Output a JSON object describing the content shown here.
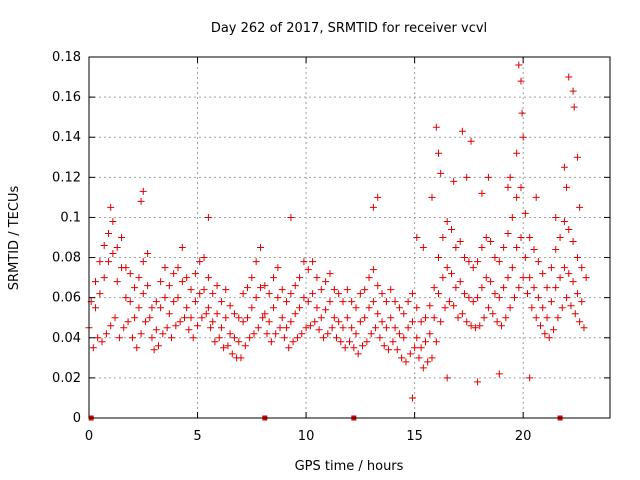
{
  "chart_data": {
    "type": "scatter",
    "title": "Day 262 of 2017, SRMTID for receiver vcvl",
    "xlabel": "GPS time / hours",
    "ylabel": "SRMTID / TECUs",
    "xlim": [
      0,
      24
    ],
    "ylim": [
      0,
      0.18
    ],
    "xticks": [
      0,
      5,
      10,
      15,
      20
    ],
    "xtick_labels": [
      "0",
      "5",
      "10",
      "15",
      "20"
    ],
    "yticks": [
      0,
      0.02,
      0.04,
      0.06,
      0.08,
      0.1,
      0.12,
      0.14,
      0.16,
      0.18
    ],
    "ytick_labels": [
      "0",
      "0.02",
      "0.04",
      "0.06",
      "0.08",
      "0.1",
      "0.12",
      "0.14",
      "0.16",
      "0.18"
    ],
    "grid": true,
    "marker": "+",
    "color": "#e00000",
    "baseline_markers_x": [
      0.1,
      8.1,
      12.2,
      21.7
    ],
    "series": [
      {
        "name": "SRMTID",
        "x": [
          0.0,
          0.3,
          0.5,
          0.7,
          0.9,
          1.1,
          1.3,
          1.5,
          1.7,
          1.9,
          2.1,
          2.3,
          2.5,
          2.7,
          2.9,
          3.1,
          3.3,
          3.5,
          3.7,
          3.9,
          4.1,
          4.3,
          4.5,
          4.7,
          4.9,
          5.1,
          5.3,
          5.5,
          5.7,
          5.9,
          6.1,
          6.3,
          6.5,
          6.7,
          6.9,
          7.1,
          7.3,
          7.5,
          7.7,
          7.9,
          8.1,
          8.3,
          8.5,
          8.7,
          8.9,
          9.1,
          9.3,
          9.5,
          9.7,
          9.9,
          10.1,
          10.3,
          10.5,
          10.7,
          10.9,
          11.1,
          11.3,
          11.5,
          11.7,
          11.9,
          12.1,
          12.3,
          12.5,
          12.7,
          12.9,
          13.1,
          13.3,
          13.5,
          13.7,
          13.9,
          14.1,
          14.3,
          14.5,
          14.7,
          14.9,
          15.1,
          15.3,
          15.5,
          15.7,
          15.9,
          16.1,
          16.3,
          16.5,
          16.7,
          16.9,
          17.1,
          17.3,
          17.5,
          17.7,
          17.9,
          18.1,
          18.3,
          18.5,
          18.7,
          18.9,
          19.1,
          19.3,
          19.5,
          19.7,
          19.9,
          20.1,
          20.3,
          20.5,
          20.7,
          20.9,
          21.1,
          21.3,
          21.5,
          21.7,
          21.9,
          22.1,
          22.3,
          22.5,
          22.7,
          22.9,
          0.2,
          0.4,
          0.6,
          0.8,
          1.0,
          1.2,
          1.4,
          1.6,
          1.8,
          2.0,
          2.2,
          2.4,
          2.6,
          2.8,
          3.0,
          3.2,
          3.4,
          3.6,
          3.8,
          4.0,
          4.2,
          4.4,
          4.6,
          4.8,
          5.0,
          5.2,
          5.4,
          5.6,
          5.8,
          6.0,
          6.2,
          6.4,
          6.6,
          6.8,
          7.0,
          7.2,
          7.4,
          7.6,
          7.8,
          8.0,
          8.2,
          8.4,
          8.6,
          8.8,
          9.0,
          9.2,
          9.4,
          9.6,
          9.8,
          10.0,
          10.2,
          10.4,
          10.6,
          10.8,
          11.0,
          11.2,
          11.4,
          11.6,
          11.8,
          12.0,
          12.2,
          12.4,
          12.6,
          12.8,
          13.0,
          13.2,
          13.4,
          13.6,
          13.8,
          14.0,
          14.2,
          14.4,
          14.6,
          14.8,
          15.0,
          15.2,
          15.4,
          15.6,
          15.8,
          16.0,
          16.2,
          16.4,
          16.6,
          16.8,
          17.0,
          17.2,
          17.4,
          17.6,
          17.8,
          18.0,
          18.2,
          18.4,
          18.6,
          18.8,
          19.0,
          19.2,
          19.4,
          19.6,
          19.8,
          20.0,
          20.2,
          20.4,
          20.6,
          20.8,
          21.0,
          21.2,
          21.4,
          21.6,
          21.8,
          22.0,
          22.2,
          22.4,
          22.6,
          22.8,
          0.1,
          0.3,
          0.5,
          0.7,
          0.9,
          1.1,
          1.3,
          1.5,
          1.7,
          1.9,
          2.1,
          2.3,
          2.5,
          2.7,
          2.9,
          3.1,
          3.3,
          3.5,
          3.7,
          3.9,
          4.1,
          4.3,
          4.5,
          4.7,
          4.9,
          5.1,
          5.3,
          5.5,
          5.7,
          5.9,
          6.1,
          6.3,
          6.5,
          6.7,
          6.9,
          7.1,
          7.3,
          7.5,
          7.7,
          7.9,
          8.1,
          8.3,
          8.5,
          8.7,
          8.9,
          9.1,
          9.3,
          9.5,
          9.7,
          9.9,
          10.1,
          10.3,
          10.5,
          10.7,
          10.9,
          11.1,
          11.3,
          11.5,
          11.7,
          11.9,
          12.1,
          12.3,
          12.5,
          12.7,
          12.9,
          13.1,
          13.3,
          13.5,
          13.7,
          13.9,
          14.1,
          14.3,
          14.5,
          14.7,
          14.9,
          15.1,
          15.3,
          15.5,
          15.7,
          15.9,
          16.1,
          16.3,
          16.5,
          16.7,
          16.9,
          17.1,
          17.3,
          17.5,
          17.7,
          17.9,
          18.1,
          18.3,
          18.5,
          18.7,
          18.9,
          19.1,
          19.3,
          19.5,
          19.7,
          19.9,
          20.1,
          20.3,
          20.5,
          20.7,
          20.9,
          21.1,
          21.3,
          21.5,
          21.7,
          21.9,
          22.1,
          22.3,
          22.5,
          22.7,
          16.0,
          17.2,
          17.6,
          19.8,
          19.9,
          19.95,
          22.1,
          22.3,
          22.35,
          19.7,
          20.0,
          21.9,
          22.5,
          16.2,
          16.8,
          18.4,
          19.3,
          15.8,
          15.1,
          15.4,
          14.9,
          16.5,
          17.9,
          18.9,
          20.3,
          2.5,
          2.4,
          1.0,
          5.5,
          9.3,
          13.3,
          13.1,
          16.1,
          17.4,
          18.1,
          19.4,
          20.6,
          21.5,
          22.0,
          22.6
        ],
        "y": [
          0.045,
          0.055,
          0.062,
          0.07,
          0.078,
          0.082,
          0.068,
          0.075,
          0.06,
          0.058,
          0.05,
          0.055,
          0.062,
          0.066,
          0.04,
          0.044,
          0.055,
          0.06,
          0.052,
          0.058,
          0.06,
          0.068,
          0.055,
          0.05,
          0.058,
          0.062,
          0.064,
          0.055,
          0.048,
          0.052,
          0.045,
          0.05,
          0.042,
          0.04,
          0.038,
          0.048,
          0.05,
          0.055,
          0.06,
          0.065,
          0.052,
          0.048,
          0.055,
          0.06,
          0.05,
          0.045,
          0.048,
          0.052,
          0.055,
          0.06,
          0.058,
          0.062,
          0.055,
          0.05,
          0.054,
          0.058,
          0.05,
          0.048,
          0.045,
          0.05,
          0.045,
          0.042,
          0.048,
          0.05,
          0.055,
          0.058,
          0.052,
          0.048,
          0.045,
          0.05,
          0.045,
          0.042,
          0.04,
          0.045,
          0.048,
          0.04,
          0.035,
          0.038,
          0.042,
          0.05,
          0.062,
          0.07,
          0.075,
          0.072,
          0.065,
          0.068,
          0.062,
          0.06,
          0.058,
          0.06,
          0.065,
          0.07,
          0.068,
          0.062,
          0.06,
          0.065,
          0.07,
          0.075,
          0.085,
          0.09,
          0.08,
          0.07,
          0.065,
          0.06,
          0.055,
          0.05,
          0.058,
          0.065,
          0.07,
          0.075,
          0.072,
          0.068,
          0.062,
          0.058,
          0.07,
          0.035,
          0.04,
          0.038,
          0.042,
          0.046,
          0.05,
          0.04,
          0.045,
          0.048,
          0.04,
          0.035,
          0.042,
          0.048,
          0.05,
          0.034,
          0.036,
          0.042,
          0.045,
          0.04,
          0.046,
          0.048,
          0.05,
          0.044,
          0.04,
          0.046,
          0.05,
          0.052,
          0.045,
          0.038,
          0.04,
          0.035,
          0.036,
          0.032,
          0.03,
          0.03,
          0.036,
          0.04,
          0.042,
          0.045,
          0.05,
          0.042,
          0.038,
          0.042,
          0.045,
          0.04,
          0.035,
          0.038,
          0.04,
          0.042,
          0.045,
          0.046,
          0.048,
          0.044,
          0.04,
          0.042,
          0.045,
          0.04,
          0.038,
          0.035,
          0.038,
          0.035,
          0.032,
          0.036,
          0.038,
          0.042,
          0.045,
          0.04,
          0.036,
          0.034,
          0.038,
          0.034,
          0.03,
          0.028,
          0.032,
          0.035,
          0.03,
          0.025,
          0.028,
          0.03,
          0.038,
          0.048,
          0.055,
          0.058,
          0.056,
          0.05,
          0.052,
          0.048,
          0.046,
          0.045,
          0.046,
          0.05,
          0.055,
          0.052,
          0.048,
          0.046,
          0.05,
          0.055,
          0.06,
          0.065,
          0.07,
          0.062,
          0.055,
          0.05,
          0.046,
          0.042,
          0.04,
          0.044,
          0.05,
          0.055,
          0.06,
          0.056,
          0.052,
          0.048,
          0.045,
          0.058,
          0.068,
          0.078,
          0.086,
          0.092,
          0.098,
          0.085,
          0.09,
          0.075,
          0.072,
          0.065,
          0.07,
          0.078,
          0.082,
          0.055,
          0.058,
          0.068,
          0.075,
          0.066,
          0.072,
          0.075,
          0.085,
          0.07,
          0.064,
          0.072,
          0.078,
          0.08,
          0.07,
          0.062,
          0.066,
          0.058,
          0.064,
          0.056,
          0.052,
          0.05,
          0.062,
          0.065,
          0.07,
          0.078,
          0.085,
          0.066,
          0.062,
          0.07,
          0.075,
          0.064,
          0.058,
          0.062,
          0.066,
          0.07,
          0.078,
          0.074,
          0.078,
          0.07,
          0.064,
          0.068,
          0.072,
          0.064,
          0.062,
          0.058,
          0.064,
          0.058,
          0.055,
          0.062,
          0.064,
          0.07,
          0.074,
          0.066,
          0.062,
          0.058,
          0.064,
          0.058,
          0.055,
          0.052,
          0.058,
          0.062,
          0.055,
          0.048,
          0.05,
          0.056,
          0.065,
          0.08,
          0.09,
          0.098,
          0.094,
          0.085,
          0.088,
          0.08,
          0.078,
          0.075,
          0.078,
          0.085,
          0.09,
          0.088,
          0.08,
          0.078,
          0.085,
          0.092,
          0.1,
          0.11,
          0.115,
          0.102,
          0.09,
          0.084,
          0.078,
          0.072,
          0.065,
          0.075,
          0.084,
          0.09,
          0.098,
          0.094,
          0.088,
          0.08,
          0.075,
          0.145,
          0.143,
          0.138,
          0.176,
          0.168,
          0.152,
          0.17,
          0.163,
          0.155,
          0.132,
          0.14,
          0.125,
          0.13,
          0.122,
          0.118,
          0.12,
          0.115,
          0.11,
          0.09,
          0.085,
          0.01,
          0.02,
          0.018,
          0.022,
          0.02,
          0.113,
          0.108,
          0.105,
          0.1,
          0.1,
          0.11,
          0.105,
          0.132,
          0.12,
          0.112,
          0.12,
          0.11,
          0.1,
          0.115,
          0.105
        ]
      }
    ]
  }
}
